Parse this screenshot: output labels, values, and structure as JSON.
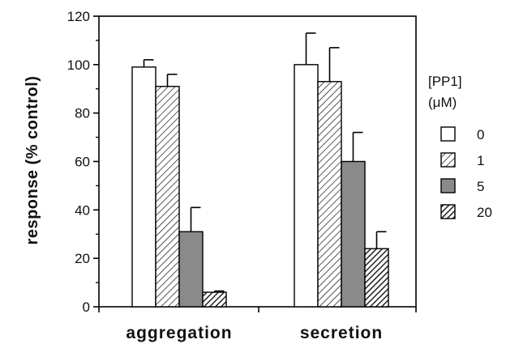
{
  "chart_data": {
    "type": "bar",
    "categories": [
      "aggregation",
      "secretion"
    ],
    "ylabel": "response (% control)",
    "xlabel": "",
    "ylim": [
      0,
      120
    ],
    "yticks": [
      "0",
      "20",
      "40",
      "60",
      "80",
      "100",
      "120"
    ],
    "legend_title": [
      "[PP1]",
      "(μM)"
    ],
    "legend_position": "right",
    "series": [
      {
        "name": "0",
        "values": [
          99,
          100
        ],
        "errors": [
          3,
          13
        ],
        "fill": "white"
      },
      {
        "name": "1",
        "values": [
          91,
          93
        ],
        "errors": [
          5,
          14
        ],
        "fill": "hatch-light"
      },
      {
        "name": "5",
        "values": [
          31,
          60
        ],
        "errors": [
          10,
          12
        ],
        "fill": "gray"
      },
      {
        "name": "20",
        "values": [
          6,
          24
        ],
        "errors": [
          0.5,
          7
        ],
        "fill": "hatch-dark"
      }
    ],
    "colors": {
      "gray": "#8a8a8a",
      "stroke": "#000000",
      "hatch_dark": "#333333"
    }
  }
}
